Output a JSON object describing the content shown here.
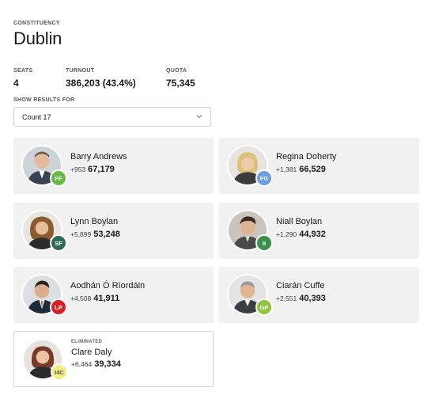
{
  "header": {
    "constituency_label": "CONSTITUENCY",
    "constituency_name": "Dublin"
  },
  "stats": {
    "seats_label": "SEATS",
    "seats_value": "4",
    "turnout_label": "TURNOUT",
    "turnout_value": "386,203 (43.4%)",
    "quota_label": "QUOTA",
    "quota_value": "75,345"
  },
  "filter": {
    "label": "SHOW RESULTS FOR",
    "selected": "Count 17"
  },
  "candidates": [
    {
      "name": "Barry Andrews",
      "change": "+953",
      "votes": "67,179",
      "party": "FF",
      "party_color": "#66bb4a"
    },
    {
      "name": "Regina Doherty",
      "change": "+1,381",
      "votes": "66,529",
      "party": "FG",
      "party_color": "#6e9de8"
    },
    {
      "name": "Lynn Boylan",
      "change": "+5,899",
      "votes": "53,248",
      "party": "SF",
      "party_color": "#2f6b55"
    },
    {
      "name": "Niall Boylan",
      "change": "+1,290",
      "votes": "44,932",
      "party": "II",
      "party_color": "#3a8f4a"
    },
    {
      "name": "Aodhán Ó Ríordáin",
      "change": "+4,508",
      "votes": "41,911",
      "party": "LP",
      "party_color": "#d61f26"
    },
    {
      "name": "Ciarán Cuffe",
      "change": "+2,551",
      "votes": "40,393",
      "party": "GP",
      "party_color": "#8fc43f"
    },
    {
      "name": "Clare Daly",
      "change": "+6,464",
      "votes": "39,334",
      "party": "I4C",
      "party_color": "#f1ee84",
      "status": "ELIMINATED"
    }
  ]
}
